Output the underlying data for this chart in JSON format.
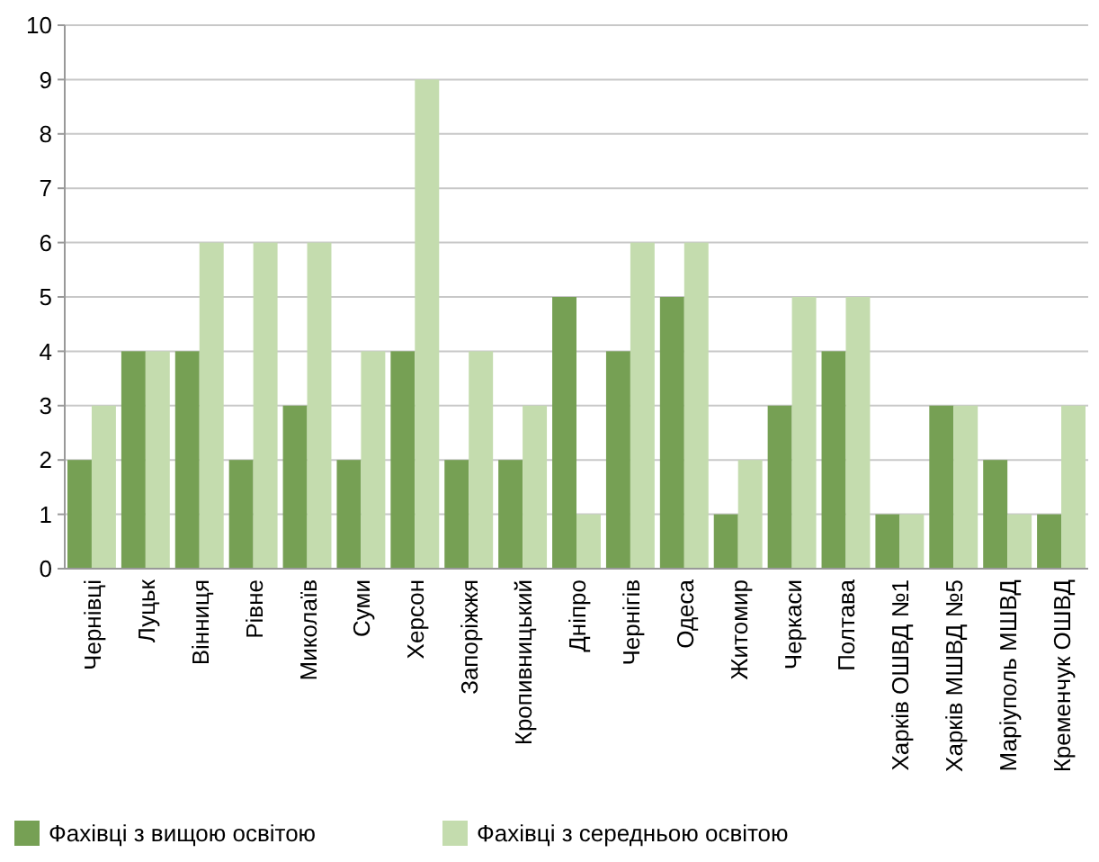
{
  "chart_data": {
    "type": "bar",
    "categories": [
      "Чернівці",
      "Луцьк",
      "Вінниця",
      "Рівне",
      "Миколаїв",
      "Суми",
      "Херсон",
      "Запоріжжя",
      "Кропивницький",
      "Дніпро",
      "Чернігів",
      "Одеса",
      "Житомир",
      "Черкаси",
      "Полтава",
      "Харків ОШВД №1",
      "Харків МШВД №5",
      "Маріуполь МШВД",
      "Кременчук ОШВД"
    ],
    "series": [
      {
        "name": "Фахівці з вищою освітою",
        "color": "#76a054",
        "values": [
          2,
          4,
          4,
          2,
          3,
          2,
          4,
          2,
          2,
          5,
          4,
          5,
          1,
          3,
          4,
          1,
          3,
          2,
          1
        ]
      },
      {
        "name": "Фахівці з середньою освітою",
        "color": "#c4dcae",
        "values": [
          3,
          4,
          6,
          6,
          6,
          4,
          9,
          4,
          3,
          1,
          6,
          6,
          2,
          5,
          5,
          1,
          3,
          1,
          3
        ]
      }
    ],
    "ylim": [
      0,
      10
    ],
    "yticks": [
      0,
      1,
      2,
      3,
      4,
      5,
      6,
      7,
      8,
      9,
      10
    ],
    "grid": "y",
    "legend": "bottom"
  }
}
